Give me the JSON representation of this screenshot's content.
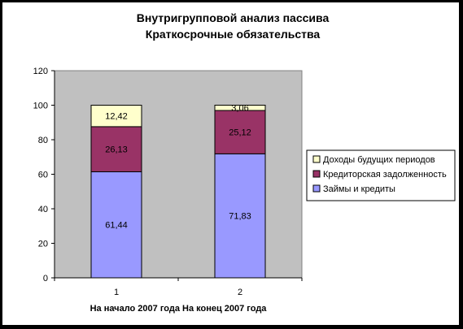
{
  "chart_data": {
    "type": "bar",
    "stacked": true,
    "title": [
      "Внутригрупповой анализ пассива",
      "Краткосрочные обязательства"
    ],
    "categories": [
      "1",
      "2"
    ],
    "xlabel": "На начало 2007 года На конец 2007 года",
    "ylabel": "",
    "ylim": [
      0,
      120
    ],
    "yticks": [
      0,
      20,
      40,
      60,
      80,
      100,
      120
    ],
    "grid": false,
    "legend_position": "right",
    "plot_background": "#c0c0c0",
    "series": [
      {
        "name": "Займы и кредиты",
        "values": [
          61.44,
          71.83
        ],
        "labels": [
          "61,44",
          "71,83"
        ],
        "color": "#9999ff"
      },
      {
        "name": "Кредиторская задолженность",
        "values": [
          26.13,
          25.12
        ],
        "labels": [
          "26,13",
          "25,12"
        ],
        "color": "#993366"
      },
      {
        "name": "Доходы будущих периодов",
        "values": [
          12.42,
          3.06
        ],
        "labels": [
          "12,42",
          "3,06"
        ],
        "color": "#ffffcc"
      }
    ]
  }
}
